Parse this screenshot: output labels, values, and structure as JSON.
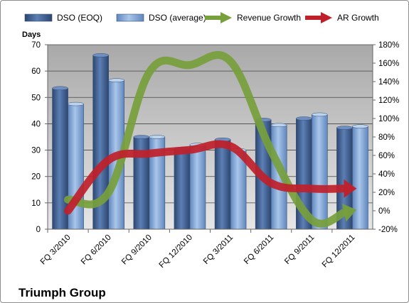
{
  "chart_data": {
    "type": "bar",
    "title": "Triumph Group",
    "y_left_unit": "Days",
    "categories": [
      "FQ 3/2010",
      "FQ 6/2010",
      "FQ 9/2010",
      "FQ 12/2010",
      "FQ 3/2011",
      "FQ 6/2011",
      "FQ 9/2011",
      "FQ 12/2011"
    ],
    "series": [
      {
        "name": "DSO (EOQ)",
        "type": "bar",
        "axis": "left",
        "color": "#4f6fa0",
        "values": [
          53.5,
          66,
          35,
          30.5,
          34,
          41.5,
          42,
          38.5
        ]
      },
      {
        "name": "DSO (average)",
        "type": "bar",
        "axis": "left",
        "color": "#8eb4e3",
        "values": [
          47.5,
          56.5,
          35,
          32,
          30,
          39.5,
          43.5,
          39
        ]
      },
      {
        "name": "Revenue Growth",
        "type": "line",
        "axis": "right",
        "color": "#77a03c",
        "values": [
          12,
          20,
          150,
          158,
          162,
          65,
          -10,
          0
        ]
      },
      {
        "name": "AR Growth",
        "type": "line",
        "axis": "right",
        "color": "#c0202a",
        "values": [
          0,
          55,
          62,
          66,
          70,
          30,
          24,
          24
        ]
      }
    ],
    "y_left": {
      "min": 0,
      "max": 70,
      "step": 10,
      "ticks": [
        "0",
        "10",
        "20",
        "30",
        "40",
        "50",
        "60",
        "70"
      ]
    },
    "y_right": {
      "min": -20,
      "max": 180,
      "step": 20,
      "ticks": [
        "-20%",
        "0%",
        "20%",
        "40%",
        "60%",
        "80%",
        "100%",
        "120%",
        "140%",
        "160%",
        "180%"
      ]
    },
    "grid": true,
    "legend_position": "top"
  }
}
